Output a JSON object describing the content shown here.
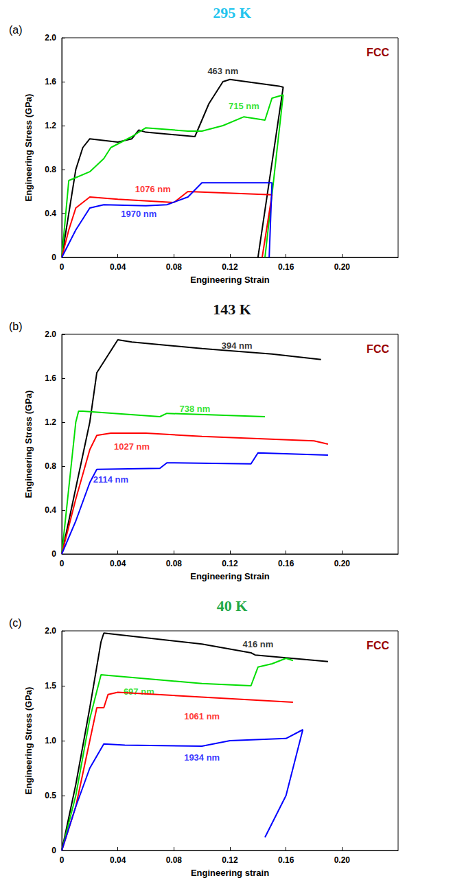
{
  "chart_data": [
    {
      "type": "line",
      "title": "295 K",
      "panel_label": "(a)",
      "annotation": "FCC",
      "x_label": "Engineering Strain",
      "y_label": "Engineering Stress (GPa)",
      "xlim": [
        0,
        0.24
      ],
      "xticks": [
        0,
        0.04,
        0.08,
        0.12,
        0.16,
        {
          "value": 0.2,
          "label": "0.20"
        }
      ],
      "ylim": [
        0,
        2
      ],
      "yticks": [
        0,
        0.4,
        0.8,
        1.2,
        1.6,
        {
          "value": 2,
          "label": "2.0"
        }
      ],
      "grid": false,
      "series": [
        {
          "name": "463 nm",
          "color": "#000000",
          "label_at": [
            0.115,
            1.7
          ],
          "x": [
            0,
            0.005,
            0.01,
            0.015,
            0.02,
            0.04,
            0.05,
            0.055,
            0.06,
            0.095,
            0.1,
            0.105,
            0.115,
            0.12,
            0.155,
            0.158,
            0.14
          ],
          "values": [
            0,
            0.4,
            0.8,
            1.0,
            1.08,
            1.05,
            1.08,
            1.16,
            1.14,
            1.1,
            1.25,
            1.4,
            1.6,
            1.62,
            1.56,
            1.55,
            0
          ]
        },
        {
          "name": "715 nm",
          "color": "#00dd00",
          "label_at": [
            0.13,
            1.38
          ],
          "x": [
            0,
            0.005,
            0.02,
            0.03,
            0.035,
            0.05,
            0.06,
            0.09,
            0.1,
            0.115,
            0.13,
            0.145,
            0.15,
            0.158,
            0.145
          ],
          "values": [
            0,
            0.7,
            0.78,
            0.9,
            1.0,
            1.1,
            1.18,
            1.15,
            1.15,
            1.2,
            1.28,
            1.25,
            1.45,
            1.48,
            0
          ]
        },
        {
          "name": "1076 nm",
          "color": "#ff0000",
          "label_at": [
            0.065,
            0.62
          ],
          "x": [
            0,
            0.005,
            0.01,
            0.02,
            0.04,
            0.08,
            0.09,
            0.15,
            0.143
          ],
          "values": [
            0,
            0.25,
            0.45,
            0.55,
            0.53,
            0.5,
            0.6,
            0.57,
            0
          ]
        },
        {
          "name": "1970 nm",
          "color": "#0000ff",
          "label_at": [
            0.055,
            0.4
          ],
          "x": [
            0,
            0.01,
            0.02,
            0.03,
            0.06,
            0.075,
            0.09,
            0.1,
            0.15,
            0.148
          ],
          "values": [
            0,
            0.25,
            0.45,
            0.48,
            0.47,
            0.48,
            0.55,
            0.68,
            0.68,
            0
          ]
        }
      ]
    },
    {
      "type": "line",
      "title": "143 K",
      "panel_label": "(b)",
      "annotation": "FCC",
      "x_label": "Engineering Strain",
      "y_label": "Engineering Stress (GPa)",
      "xlim": [
        0,
        0.24
      ],
      "xticks": [
        0,
        0.04,
        0.08,
        0.12,
        0.16,
        {
          "value": 0.2,
          "label": "0.20"
        }
      ],
      "ylim": [
        0,
        2
      ],
      "yticks": [
        0,
        0.4,
        0.8,
        1.2,
        1.6,
        {
          "value": 2,
          "label": "2.0"
        }
      ],
      "grid": false,
      "series": [
        {
          "name": "394 nm",
          "color": "#000000",
          "label_at": [
            0.125,
            1.9
          ],
          "x": [
            0,
            0.01,
            0.02,
            0.025,
            0.03,
            0.04,
            0.05,
            0.1,
            0.15,
            0.185
          ],
          "values": [
            0,
            0.6,
            1.2,
            1.65,
            1.75,
            1.95,
            1.93,
            1.87,
            1.82,
            1.77
          ]
        },
        {
          "name": "738 nm",
          "color": "#00dd00",
          "label_at": [
            0.095,
            1.32
          ],
          "x": [
            0,
            0.005,
            0.01,
            0.012,
            0.015,
            0.07,
            0.075,
            0.145
          ],
          "values": [
            0,
            0.6,
            1.2,
            1.3,
            1.3,
            1.25,
            1.28,
            1.25
          ]
        },
        {
          "name": "1027 nm",
          "color": "#ff0000",
          "label_at": [
            0.05,
            0.98
          ],
          "x": [
            0,
            0.01,
            0.02,
            0.025,
            0.035,
            0.06,
            0.1,
            0.18,
            0.19
          ],
          "values": [
            0,
            0.5,
            0.95,
            1.08,
            1.1,
            1.1,
            1.07,
            1.03,
            1.0
          ]
        },
        {
          "name": "2114 nm",
          "color": "#0000ff",
          "label_at": [
            0.035,
            0.68
          ],
          "x": [
            0,
            0.01,
            0.02,
            0.025,
            0.07,
            0.075,
            0.135,
            0.14,
            0.19
          ],
          "values": [
            0,
            0.3,
            0.65,
            0.77,
            0.78,
            0.83,
            0.82,
            0.92,
            0.9
          ]
        }
      ]
    },
    {
      "type": "line",
      "title": "40 K",
      "panel_label": "(c)",
      "annotation": "FCC",
      "x_label": "Engineering strain",
      "y_label": "Engineering Stress (GPa)",
      "xlim": [
        0,
        0.24
      ],
      "xticks": [
        0,
        0.04,
        0.08,
        0.12,
        0.16,
        {
          "value": 0.2,
          "label": "0.20"
        }
      ],
      "ylim": [
        0,
        2
      ],
      "yticks": [
        0,
        0.5,
        {
          "value": 1,
          "label": "1.0"
        },
        1.5,
        {
          "value": 2,
          "label": "2.0"
        }
      ],
      "grid": false,
      "series": [
        {
          "name": "416 nm",
          "color": "#000000",
          "label_at": [
            0.14,
            1.88
          ],
          "x": [
            0,
            0.01,
            0.02,
            0.028,
            0.03,
            0.1,
            0.135,
            0.138,
            0.19
          ],
          "values": [
            0,
            0.6,
            1.3,
            1.9,
            1.98,
            1.88,
            1.8,
            1.78,
            1.72
          ]
        },
        {
          "name": "697 nm",
          "color": "#00dd00",
          "label_at": [
            0.055,
            1.45
          ],
          "x": [
            0,
            0.01,
            0.02,
            0.028,
            0.1,
            0.135,
            0.14,
            0.15,
            0.16,
            0.165
          ],
          "values": [
            0,
            0.5,
            1.2,
            1.6,
            1.52,
            1.5,
            1.67,
            1.7,
            1.75,
            1.73
          ]
        },
        {
          "name": "1061 nm",
          "color": "#ff0000",
          "label_at": [
            0.1,
            1.22
          ],
          "x": [
            0,
            0.01,
            0.02,
            0.025,
            0.03,
            0.033,
            0.04,
            0.165
          ],
          "values": [
            0,
            0.4,
            1.0,
            1.3,
            1.3,
            1.42,
            1.44,
            1.35
          ]
        },
        {
          "name": "1934 nm",
          "color": "#0000ff",
          "label_at": [
            0.1,
            0.85
          ],
          "x": [
            0,
            0.01,
            0.02,
            0.03,
            0.045,
            0.1,
            0.12,
            0.16,
            0.172,
            0.16,
            0.145
          ],
          "values": [
            0,
            0.4,
            0.75,
            0.97,
            0.96,
            0.95,
            1.0,
            1.02,
            1.1,
            0.5,
            0.12
          ]
        }
      ]
    }
  ]
}
